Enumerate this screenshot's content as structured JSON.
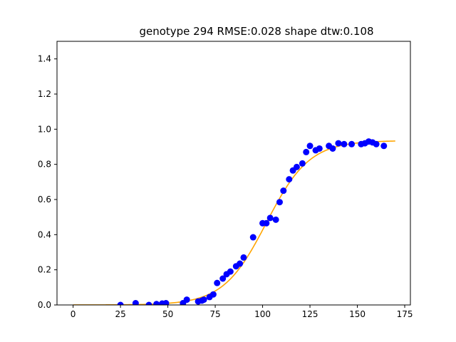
{
  "chart_data": {
    "type": "scatter",
    "title": "genotype 294 RMSE:0.028 shape dtw:0.108",
    "xlabel": "",
    "ylabel": "",
    "xlim": [
      -8.5,
      178
    ],
    "ylim": [
      0,
      1.5
    ],
    "xticks": [
      0,
      25,
      50,
      75,
      100,
      125,
      150,
      175
    ],
    "yticks": [
      0.0,
      0.2,
      0.4,
      0.6,
      0.8,
      1.0,
      1.2,
      1.4
    ],
    "xtick_labels": [
      "0",
      "25",
      "50",
      "75",
      "100",
      "125",
      "150",
      "175"
    ],
    "ytick_labels": [
      "0.0",
      "0.2",
      "0.4",
      "0.6",
      "0.8",
      "1.0",
      "1.2",
      "1.4"
    ],
    "grid": false,
    "series": [
      {
        "kind": "scatter",
        "color": "#0000ff",
        "points": [
          [
            25,
            0.0
          ],
          [
            33,
            0.01
          ],
          [
            40,
            0.0
          ],
          [
            44,
            0.005
          ],
          [
            47,
            0.008
          ],
          [
            49,
            0.01
          ],
          [
            58,
            0.01
          ],
          [
            60,
            0.03
          ],
          [
            66,
            0.02
          ],
          [
            68,
            0.025
          ],
          [
            69,
            0.03
          ],
          [
            72,
            0.045
          ],
          [
            74,
            0.06
          ],
          [
            76,
            0.125
          ],
          [
            79,
            0.15
          ],
          [
            81,
            0.175
          ],
          [
            83,
            0.19
          ],
          [
            86,
            0.22
          ],
          [
            88,
            0.235
          ],
          [
            90,
            0.27
          ],
          [
            95,
            0.385
          ],
          [
            100,
            0.465
          ],
          [
            102,
            0.465
          ],
          [
            104,
            0.495
          ],
          [
            107,
            0.485
          ],
          [
            109,
            0.585
          ],
          [
            111,
            0.65
          ],
          [
            114,
            0.715
          ],
          [
            116,
            0.765
          ],
          [
            118,
            0.785
          ],
          [
            121,
            0.805
          ],
          [
            123,
            0.87
          ],
          [
            125,
            0.905
          ],
          [
            128,
            0.88
          ],
          [
            130,
            0.89
          ],
          [
            135,
            0.905
          ],
          [
            137,
            0.89
          ],
          [
            140,
            0.92
          ],
          [
            143,
            0.915
          ],
          [
            147,
            0.915
          ],
          [
            152,
            0.915
          ],
          [
            154,
            0.92
          ],
          [
            156,
            0.93
          ],
          [
            158,
            0.925
          ],
          [
            160,
            0.915
          ],
          [
            164,
            0.905
          ]
        ]
      },
      {
        "kind": "line",
        "color": "#ffa500",
        "model": "logistic",
        "params": {
          "L": 0.935,
          "k": 0.088,
          "x0": 102,
          "x_start": 0,
          "x_end": 170
        }
      }
    ]
  }
}
